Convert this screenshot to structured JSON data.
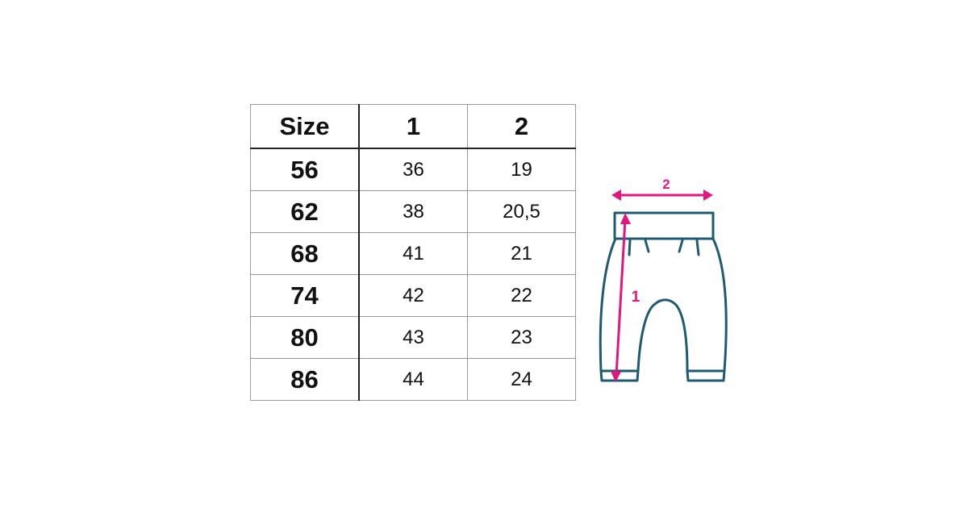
{
  "table": {
    "headers": [
      "Size",
      "1",
      "2"
    ],
    "rows": [
      [
        "56",
        "36",
        "19"
      ],
      [
        "62",
        "38",
        "20,5"
      ],
      [
        "68",
        "41",
        "21"
      ],
      [
        "74",
        "42",
        "22"
      ],
      [
        "80",
        "43",
        "23"
      ],
      [
        "86",
        "44",
        "24"
      ]
    ]
  },
  "diagram": {
    "label_length": "1",
    "label_width": "2",
    "outline_color": "#1f5a73",
    "arrow_color": "#e0177f"
  }
}
